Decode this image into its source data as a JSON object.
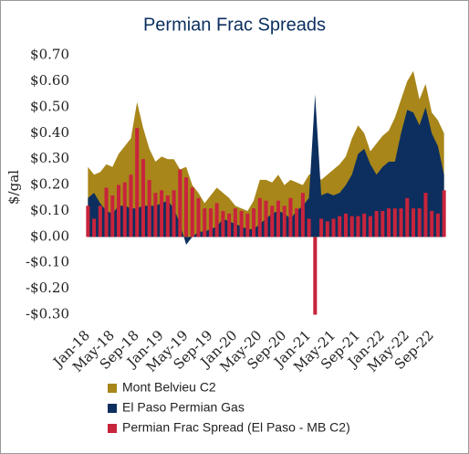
{
  "chart_data": {
    "type": "area-bar",
    "title": "Permian Frac Spreads",
    "y_label": "$/gal",
    "categories": [
      "Jan-18",
      null,
      null,
      null,
      "May-18",
      null,
      null,
      null,
      "Sep-18",
      null,
      null,
      null,
      "Jan-19",
      null,
      null,
      null,
      "May-19",
      null,
      null,
      null,
      "Sep-19",
      null,
      null,
      null,
      "Jan-20",
      null,
      null,
      null,
      "May-20",
      null,
      null,
      null,
      "Sep-20",
      null,
      null,
      null,
      "Jan-21",
      null,
      null,
      null,
      "May-21",
      null,
      null,
      null,
      "Sep-21",
      null,
      null,
      null,
      "Jan-22",
      null,
      null,
      null,
      "May-22",
      null,
      null,
      null,
      "Sep-22",
      null,
      null
    ],
    "series": [
      {
        "name": "Mont Belvieu C2",
        "color": "#a8861a",
        "kind": "area",
        "values": [
          0.27,
          0.24,
          0.25,
          0.28,
          0.27,
          0.32,
          0.35,
          0.38,
          0.52,
          0.42,
          0.34,
          0.29,
          0.31,
          0.3,
          0.3,
          0.26,
          0.27,
          0.2,
          0.17,
          0.13,
          0.16,
          0.19,
          0.17,
          0.15,
          0.12,
          0.11,
          0.1,
          0.14,
          0.22,
          0.22,
          0.21,
          0.24,
          0.2,
          0.22,
          0.21,
          0.2,
          0.24,
          0.25,
          0.22,
          0.24,
          0.26,
          0.28,
          0.31,
          0.38,
          0.43,
          0.4,
          0.33,
          0.36,
          0.39,
          0.41,
          0.46,
          0.53,
          0.6,
          0.64,
          0.53,
          0.59,
          0.48,
          0.45,
          0.4
        ]
      },
      {
        "name": "El Paso Permian Gas",
        "color": "#0c2f5f",
        "kind": "area",
        "values": [
          0.15,
          0.17,
          0.13,
          0.1,
          0.09,
          0.12,
          0.12,
          0.11,
          0.11,
          0.12,
          0.12,
          0.12,
          0.13,
          0.14,
          0.11,
          0.05,
          -0.03,
          0.0,
          0.02,
          0.02,
          0.03,
          0.04,
          0.07,
          0.06,
          0.05,
          0.04,
          0.03,
          0.03,
          0.05,
          0.07,
          0.09,
          0.1,
          0.09,
          0.07,
          0.1,
          0.12,
          0.15,
          0.55,
          0.16,
          0.17,
          0.16,
          0.17,
          0.2,
          0.24,
          0.32,
          0.34,
          0.28,
          0.24,
          0.27,
          0.29,
          0.29,
          0.4,
          0.49,
          0.48,
          0.43,
          0.5,
          0.4,
          0.35,
          0.24
        ]
      },
      {
        "name": "Permian Frac Spread (El Paso - MB C2)",
        "color": "#c8243c",
        "kind": "bar",
        "values": [
          0.12,
          0.07,
          0.12,
          0.19,
          0.16,
          0.2,
          0.21,
          0.24,
          0.42,
          0.3,
          0.22,
          0.17,
          0.18,
          0.16,
          0.18,
          0.26,
          0.23,
          0.19,
          0.15,
          0.11,
          0.11,
          0.13,
          0.1,
          0.09,
          0.11,
          0.1,
          0.09,
          0.11,
          0.15,
          0.14,
          0.12,
          0.14,
          0.12,
          0.15,
          0.11,
          0.17,
          0.07,
          -0.3,
          0.07,
          0.06,
          0.07,
          0.08,
          0.09,
          0.08,
          0.08,
          0.09,
          0.08,
          0.1,
          0.1,
          0.11,
          0.11,
          0.11,
          0.15,
          0.11,
          0.11,
          0.17,
          0.1,
          0.09,
          0.18
        ]
      }
    ],
    "ylim": [
      -0.33,
      0.72
    ],
    "yticks": [
      {
        "value": 0.7,
        "label": "$0.70"
      },
      {
        "value": 0.6,
        "label": "$0.60"
      },
      {
        "value": 0.5,
        "label": "$0.50"
      },
      {
        "value": 0.4,
        "label": "$0.40"
      },
      {
        "value": 0.3,
        "label": "$0.30"
      },
      {
        "value": 0.2,
        "label": "$0.20"
      },
      {
        "value": 0.1,
        "label": "$0.10"
      },
      {
        "value": 0,
        "label": "$0.00"
      },
      {
        "value": -0.1,
        "label": "-$0.10"
      },
      {
        "value": -0.2,
        "label": "-$0.20"
      },
      {
        "value": -0.3,
        "label": "-$0.30"
      }
    ]
  }
}
